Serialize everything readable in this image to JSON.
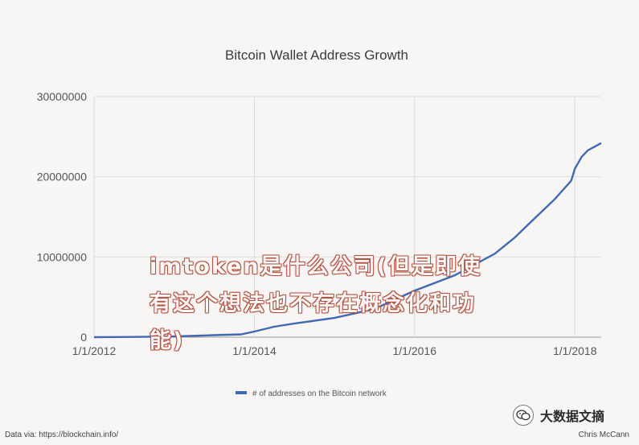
{
  "chart_data": {
    "type": "line",
    "title": "Bitcoin Wallet Address Growth",
    "xlabel": "",
    "ylabel": "",
    "x_ticks": [
      "1/1/2012",
      "1/1/2014",
      "1/1/2016",
      "1/1/2018"
    ],
    "x_range": [
      "2012-01-01",
      "2018-05-01"
    ],
    "y_ticks": [
      "0",
      "10000000",
      "20000000",
      "30000000"
    ],
    "ylim": [
      0,
      30000000
    ],
    "grid": true,
    "legend_position": "bottom",
    "series": [
      {
        "name": "# of addresses on the Bitcoin network",
        "color": "#4169b0",
        "points": [
          {
            "x": "2012-01-01",
            "y": 0
          },
          {
            "x": "2012-07-01",
            "y": 30000
          },
          {
            "x": "2013-01-01",
            "y": 90000
          },
          {
            "x": "2013-07-01",
            "y": 250000
          },
          {
            "x": "2013-11-01",
            "y": 350000
          },
          {
            "x": "2014-01-01",
            "y": 700000
          },
          {
            "x": "2014-04-01",
            "y": 1300000
          },
          {
            "x": "2014-07-01",
            "y": 1700000
          },
          {
            "x": "2015-01-01",
            "y": 2400000
          },
          {
            "x": "2015-07-01",
            "y": 3500000
          },
          {
            "x": "2016-01-01",
            "y": 5800000
          },
          {
            "x": "2016-07-01",
            "y": 7700000
          },
          {
            "x": "2017-01-01",
            "y": 10400000
          },
          {
            "x": "2017-04-01",
            "y": 12400000
          },
          {
            "x": "2017-07-01",
            "y": 14800000
          },
          {
            "x": "2017-10-01",
            "y": 17200000
          },
          {
            "x": "2017-12-15",
            "y": 19500000
          },
          {
            "x": "2018-01-01",
            "y": 21000000
          },
          {
            "x": "2018-02-01",
            "y": 22500000
          },
          {
            "x": "2018-03-01",
            "y": 23300000
          },
          {
            "x": "2018-05-01",
            "y": 24200000
          }
        ]
      }
    ]
  },
  "footer": {
    "source": "Data via: https://blockchain.info/",
    "author": "Chris McCann"
  },
  "watermark": {
    "text": "imtoken是什么公司(但是即使有这个想法也不存在概念化和功能)"
  },
  "badge": {
    "name": "大数据文摘",
    "icon": "wechat-icon"
  }
}
